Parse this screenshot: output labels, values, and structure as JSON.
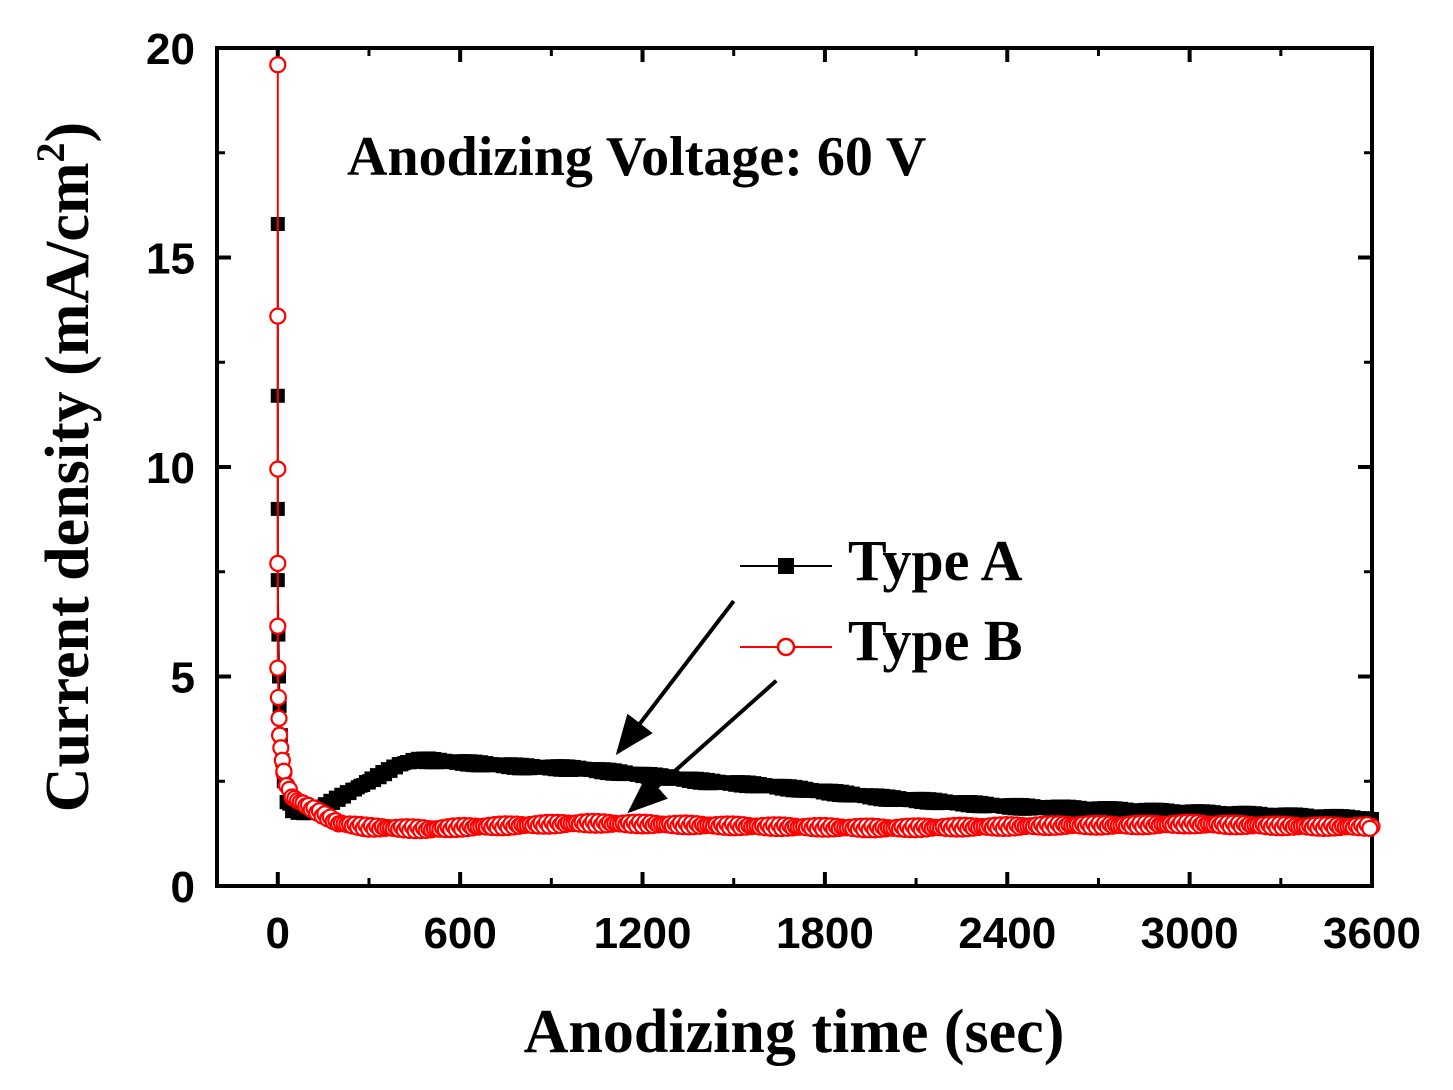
{
  "chart_data": {
    "type": "line",
    "title": "",
    "annotation": "Anodizing Voltage: 60 V",
    "xlabel": "Anodizing time (sec)",
    "ylabel": "Current density (mA/cm",
    "ylabel_sup": "2",
    "ylabel_close": ")",
    "xlim": [
      -200,
      3600
    ],
    "ylim": [
      0,
      20
    ],
    "xticks": [
      0,
      600,
      1200,
      1800,
      2400,
      3000,
      3600
    ],
    "yticks": [
      0,
      5,
      10,
      15,
      20
    ],
    "xtick_labels": [
      "0",
      "600",
      "1200",
      "1800",
      "2400",
      "3000",
      "3600"
    ],
    "ytick_labels": [
      "0",
      "5",
      "10",
      "15",
      "20"
    ],
    "legend_position": "right-middle",
    "series": [
      {
        "name": "Type A",
        "color": "#000000",
        "marker": "filled-square",
        "points": [
          [
            0,
            15.8
          ],
          [
            0,
            11.7
          ],
          [
            0,
            9.0
          ],
          [
            0,
            7.3
          ],
          [
            2,
            6.0
          ],
          [
            4,
            5.0
          ],
          [
            6,
            4.3
          ],
          [
            10,
            3.6
          ],
          [
            15,
            3.0
          ],
          [
            20,
            2.5
          ],
          [
            30,
            2.0
          ],
          [
            50,
            1.8
          ],
          [
            100,
            1.75
          ],
          [
            150,
            1.9
          ],
          [
            200,
            2.1
          ],
          [
            300,
            2.5
          ],
          [
            400,
            2.9
          ],
          [
            450,
            3.0
          ],
          [
            500,
            3.0
          ],
          [
            600,
            2.95
          ],
          [
            800,
            2.85
          ],
          [
            1000,
            2.8
          ],
          [
            1200,
            2.65
          ],
          [
            1400,
            2.5
          ],
          [
            1600,
            2.4
          ],
          [
            1800,
            2.25
          ],
          [
            2000,
            2.1
          ],
          [
            2200,
            2.0
          ],
          [
            2400,
            1.9
          ],
          [
            2600,
            1.85
          ],
          [
            2800,
            1.8
          ],
          [
            3000,
            1.75
          ],
          [
            3200,
            1.7
          ],
          [
            3400,
            1.65
          ],
          [
            3600,
            1.6
          ]
        ]
      },
      {
        "name": "Type B",
        "color": "#ff0000",
        "marker": "open-circle",
        "points": [
          [
            0,
            19.6
          ],
          [
            0,
            13.6
          ],
          [
            0,
            9.95
          ],
          [
            0,
            7.7
          ],
          [
            0,
            6.2
          ],
          [
            0,
            5.2
          ],
          [
            2,
            4.5
          ],
          [
            4,
            4.0
          ],
          [
            6,
            3.6
          ],
          [
            10,
            3.3
          ],
          [
            15,
            3.0
          ],
          [
            20,
            2.7
          ],
          [
            30,
            2.4
          ],
          [
            50,
            2.1
          ],
          [
            100,
            1.9
          ],
          [
            150,
            1.7
          ],
          [
            200,
            1.5
          ],
          [
            300,
            1.4
          ],
          [
            400,
            1.38
          ],
          [
            500,
            1.35
          ],
          [
            600,
            1.4
          ],
          [
            800,
            1.45
          ],
          [
            1000,
            1.5
          ],
          [
            1200,
            1.48
          ],
          [
            1400,
            1.45
          ],
          [
            1600,
            1.42
          ],
          [
            1800,
            1.4
          ],
          [
            2000,
            1.38
          ],
          [
            2200,
            1.4
          ],
          [
            2400,
            1.42
          ],
          [
            2600,
            1.45
          ],
          [
            2800,
            1.45
          ],
          [
            3000,
            1.48
          ],
          [
            3200,
            1.45
          ],
          [
            3400,
            1.42
          ],
          [
            3600,
            1.42
          ]
        ]
      }
    ],
    "arrows": [
      {
        "from_x": 1500,
        "from_y": 6.8,
        "to_x": 1120,
        "to_y": 3.2
      },
      {
        "from_x": 1640,
        "from_y": 4.9,
        "to_x": 1160,
        "to_y": 1.8
      }
    ]
  }
}
